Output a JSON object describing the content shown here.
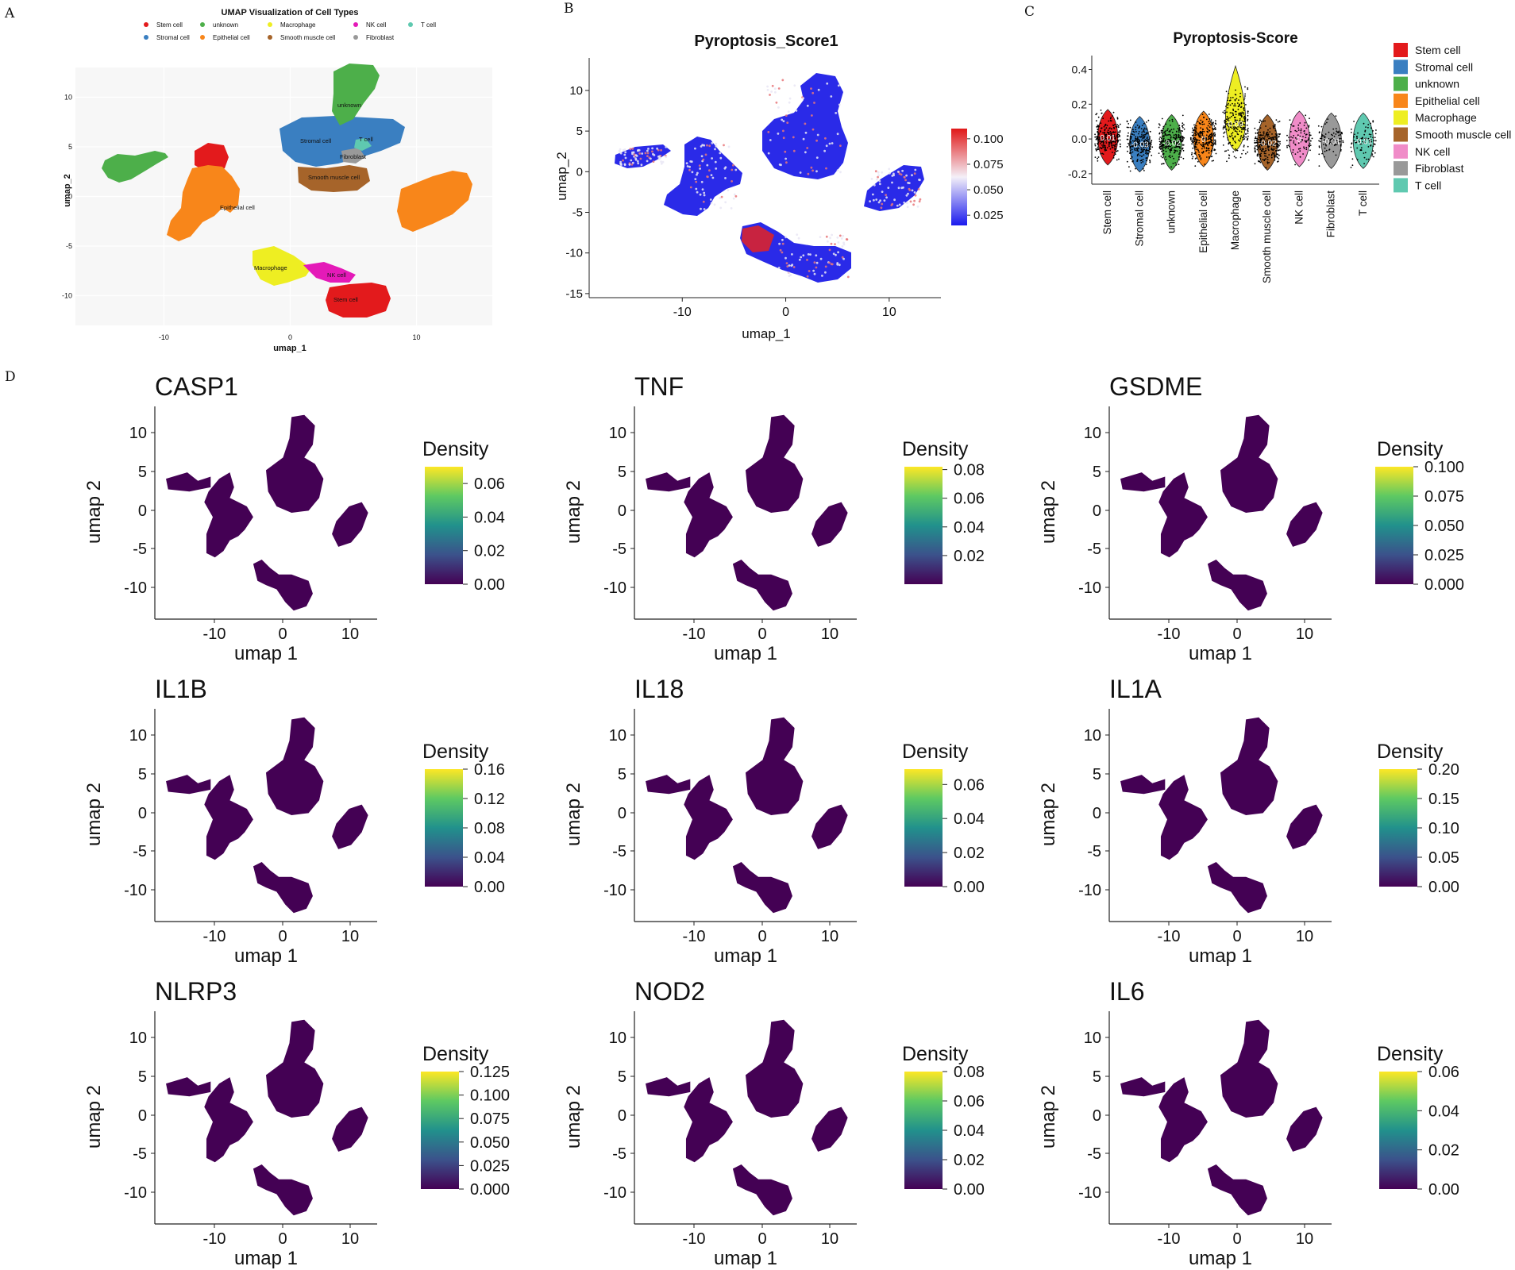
{
  "figure": {
    "panel_labels": [
      "A",
      "B",
      "C",
      "D"
    ]
  },
  "chart_data": [
    {
      "type": "scatter",
      "panel": "A",
      "title": "UMAP Visualization of Cell Types",
      "xlabel": "umap_1",
      "ylabel": "umap_2",
      "xticks": [
        -10,
        0,
        10
      ],
      "yticks": [
        10,
        5,
        0,
        -5,
        -10
      ],
      "xlim": [
        -17,
        16
      ],
      "ylim": [
        -13,
        13
      ],
      "legend": [
        {
          "name": "Stem cell",
          "color": "#e31a1c"
        },
        {
          "name": "unknown",
          "color": "#4daf4a"
        },
        {
          "name": "Macrophage",
          "color": "#eeee22"
        },
        {
          "name": "NK cell",
          "color": "#e41ab8"
        },
        {
          "name": "T cell",
          "color": "#5fc9b0"
        },
        {
          "name": "Stromal cell",
          "color": "#3a7fc1"
        },
        {
          "name": "Epithelial cell",
          "color": "#f8861a"
        },
        {
          "name": "Smooth muscle cell",
          "color": "#a6642a"
        },
        {
          "name": "Fibroblast",
          "color": "#999999"
        }
      ],
      "annotations": [
        "unknown",
        "Stromal cell",
        "T cell",
        "Fibroblast",
        "Smooth muscle cell",
        "Epithelial cell",
        "Macrophage",
        "NK cell",
        "Stem cell"
      ]
    },
    {
      "type": "scatter",
      "panel": "B",
      "title": "Pyroptosis_Score1",
      "xlabel": "umap_1",
      "ylabel": "umap_2",
      "xticks": [
        -10,
        0,
        10
      ],
      "yticks": [
        10,
        5,
        0,
        -5,
        -10,
        -15
      ],
      "xlim": [
        -19,
        15
      ],
      "ylim": [
        -15.5,
        14
      ],
      "colorbar_ticks": [
        "0.100",
        "0.075",
        "0.050",
        "0.025"
      ],
      "colorbar_range": [
        0.015,
        0.11
      ]
    },
    {
      "type": "violin",
      "panel": "C",
      "title": "Pyroptosis-Score",
      "categories": [
        "Stem cell",
        "Stromal cell",
        "unknown",
        "Epithelial cell",
        "Macrophage",
        "Smooth muscle cell",
        "NK cell",
        "Fibroblast",
        "T cell"
      ],
      "medians": [
        "0.01",
        "-0.03",
        "-0.02",
        "0",
        "0.09",
        "-0.02",
        "0",
        "-0.01",
        "-0.01"
      ],
      "median_values": [
        0.01,
        -0.03,
        -0.02,
        0,
        0.09,
        -0.02,
        0,
        -0.01,
        -0.01
      ],
      "colors": [
        "#e31a1c",
        "#3a7fc1",
        "#4daf4a",
        "#f8861a",
        "#eeee22",
        "#a6642a",
        "#f08cc8",
        "#999999",
        "#5fc9b0"
      ],
      "yticks": [
        "0.4",
        "0.2",
        "0.0",
        "-0.2"
      ],
      "ylim": [
        -0.26,
        0.48
      ]
    },
    {
      "type": "density-scatter",
      "panel": "D",
      "xlabel": "umap 1",
      "ylabel": "umap 2",
      "xticks": [
        "-10",
        "0",
        "10"
      ],
      "yticks": [
        "10",
        "5",
        "0",
        "-5",
        "-10"
      ],
      "legend_title": "Density",
      "genes": [
        {
          "name": "CASP1",
          "ticks": [
            "0.06",
            "0.04",
            "0.02",
            "0.00"
          ],
          "max": 0.07
        },
        {
          "name": "TNF",
          "ticks": [
            "0.08",
            "0.06",
            "0.04",
            "0.02"
          ],
          "max": 0.082
        },
        {
          "name": "GSDME",
          "ticks": [
            "0.100",
            "0.075",
            "0.050",
            "0.025",
            "0.000"
          ],
          "max": 0.1
        },
        {
          "name": "IL1B",
          "ticks": [
            "0.16",
            "0.12",
            "0.08",
            "0.04",
            "0.00"
          ],
          "max": 0.16
        },
        {
          "name": "IL18",
          "ticks": [
            "0.06",
            "0.04",
            "0.02",
            "0.00"
          ],
          "max": 0.069
        },
        {
          "name": "IL1A",
          "ticks": [
            "0.20",
            "0.15",
            "0.10",
            "0.05",
            "0.00"
          ],
          "max": 0.2
        },
        {
          "name": "NLRP3",
          "ticks": [
            "0.125",
            "0.100",
            "0.075",
            "0.050",
            "0.025",
            "0.000"
          ],
          "max": 0.125
        },
        {
          "name": "NOD2",
          "ticks": [
            "0.08",
            "0.06",
            "0.04",
            "0.02",
            "0.00"
          ],
          "max": 0.08
        },
        {
          "name": "IL6",
          "ticks": [
            "0.06",
            "0.04",
            "0.02",
            "0.00"
          ],
          "max": 0.06
        }
      ]
    }
  ]
}
